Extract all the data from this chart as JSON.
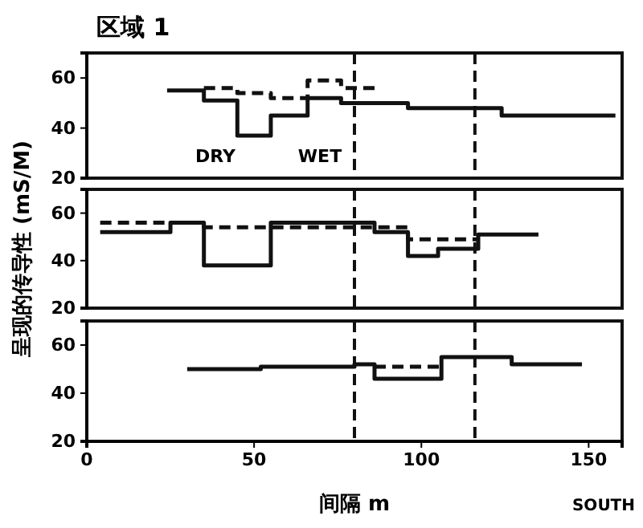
{
  "chart_data": [
    {
      "type": "step",
      "title": "区域 1",
      "xlim": [
        0,
        160
      ],
      "ylim": [
        20,
        70
      ],
      "yticks": [
        20,
        40,
        60
      ],
      "tick_labels": "y",
      "series": [
        {
          "color": "#111111",
          "line_style": "solid",
          "x": [
            24,
            35,
            45,
            55,
            66,
            76,
            96,
            124,
            158
          ],
          "values": [
            55,
            51,
            37,
            45,
            52,
            50,
            48,
            45,
            45
          ]
        },
        {
          "color": "#111111",
          "line_style": "dashed",
          "x": [
            35,
            45,
            55,
            66,
            76,
            86
          ],
          "values": [
            56,
            54,
            52,
            59,
            56,
            56
          ]
        }
      ],
      "ref_lines": [
        {
          "axis": "x",
          "value": 80,
          "line_style": "dashed"
        },
        {
          "axis": "x",
          "value": 116,
          "line_style": "dashed"
        }
      ],
      "annotations": [
        "DRY",
        "WET"
      ]
    },
    {
      "type": "step",
      "ylabel": "呈现的传导性 (mS/M)",
      "xlim": [
        0,
        160
      ],
      "ylim": [
        20,
        70
      ],
      "yticks": [
        20,
        40,
        60
      ],
      "tick_labels": "y",
      "series": [
        {
          "color": "#111111",
          "line_style": "solid",
          "x": [
            4,
            25,
            35,
            55,
            86,
            96,
            105,
            117,
            135
          ],
          "values": [
            52,
            56,
            38,
            56,
            52,
            42,
            45,
            51,
            51
          ]
        },
        {
          "color": "#111111",
          "line_style": "dashed",
          "x": [
            4,
            12,
            35,
            55,
            96,
            117
          ],
          "values": [
            56,
            56,
            54,
            54,
            49,
            49
          ]
        }
      ],
      "ref_lines": [
        {
          "axis": "x",
          "value": 80,
          "line_style": "dashed"
        },
        {
          "axis": "x",
          "value": 116,
          "line_style": "dashed"
        }
      ]
    },
    {
      "type": "step",
      "xlabel": "间隔 m",
      "xlim": [
        0,
        160
      ],
      "xticks": [
        0,
        50,
        100,
        150
      ],
      "ylim": [
        20,
        70
      ],
      "yticks": [
        20,
        40,
        60
      ],
      "series": [
        {
          "color": "#111111",
          "line_style": "solid",
          "x": [
            30,
            52,
            80,
            86,
            106,
            127,
            148
          ],
          "values": [
            50,
            51,
            52,
            46,
            55,
            52,
            52
          ]
        },
        {
          "color": "#111111",
          "line_style": "dashed",
          "x": [
            86,
            106
          ],
          "values": [
            51,
            51
          ]
        }
      ],
      "ref_lines": [
        {
          "axis": "x",
          "value": 80,
          "line_style": "dashed"
        },
        {
          "axis": "x",
          "value": 116,
          "line_style": "dashed"
        }
      ],
      "annotations": [
        "SOUTH"
      ]
    }
  ]
}
